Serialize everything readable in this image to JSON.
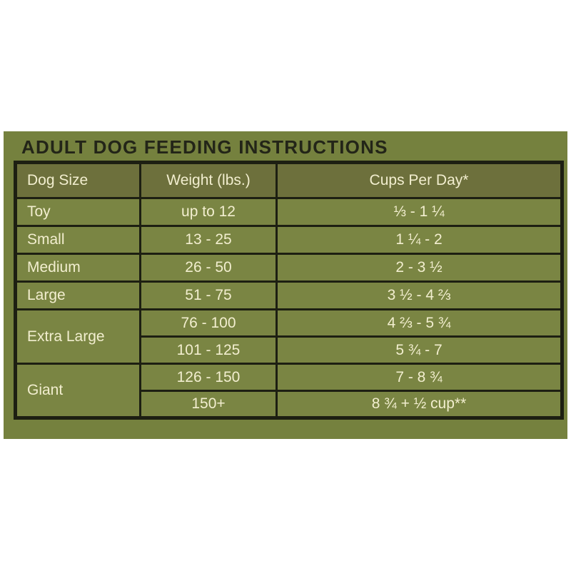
{
  "title": "ADULT DOG FEEDING INSTRUCTIONS",
  "colors": {
    "panel_background": "#75813e",
    "header_cell_background": "#6d703c",
    "row_cell_background": "#7a8543",
    "border": "#1d1f12",
    "cell_text": "#f2eecf",
    "title_text": "#232518",
    "page_background": "#ffffff"
  },
  "table": {
    "columns": [
      "Dog Size",
      "Weight (lbs.)",
      "Cups Per Day*"
    ],
    "rows": [
      {
        "size": "Toy",
        "entries": [
          {
            "weight": "up to 12",
            "cups": "⅓ - 1 ¼"
          }
        ]
      },
      {
        "size": "Small",
        "entries": [
          {
            "weight": "13 - 25",
            "cups": "1 ¼ - 2"
          }
        ]
      },
      {
        "size": "Medium",
        "entries": [
          {
            "weight": "26 - 50",
            "cups": "2 - 3 ½"
          }
        ]
      },
      {
        "size": "Large",
        "entries": [
          {
            "weight": "51 - 75",
            "cups": "3 ½ - 4 ⅔"
          }
        ]
      },
      {
        "size": "Extra Large",
        "entries": [
          {
            "weight": "76 - 100",
            "cups": "4 ⅔ - 5 ¾"
          },
          {
            "weight": "101 - 125",
            "cups": "5 ¾ -  7"
          }
        ]
      },
      {
        "size": "Giant",
        "entries": [
          {
            "weight": "126 - 150",
            "cups": "7 - 8 ¾"
          },
          {
            "weight": "150+",
            "cups": "8 ¾ + ½ cup**"
          }
        ]
      }
    ]
  }
}
